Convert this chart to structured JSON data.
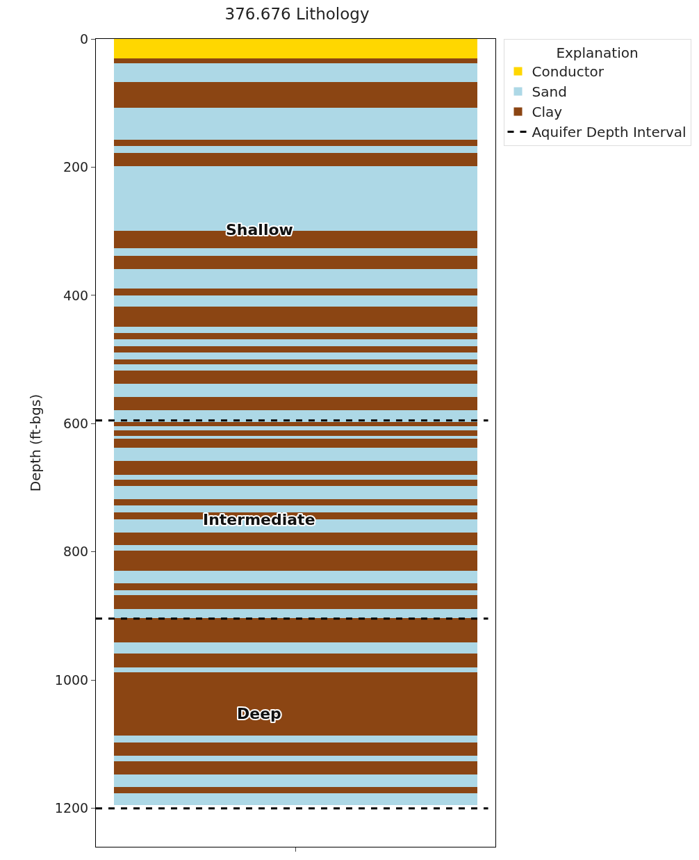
{
  "chart_data": {
    "type": "bar",
    "title": "376.676 Lithology",
    "ylabel": "Depth (ft-bgs)",
    "legend_title": "Explanation",
    "legend": "top right",
    "grid": false,
    "tick_labels": "y",
    "stacked": true,
    "categories": [
      null
    ],
    "ylim": [
      1260,
      0
    ],
    "yticks": [
      0,
      200,
      400,
      600,
      800,
      1000,
      1200
    ],
    "series": [
      {
        "name": "Conductor",
        "color": "#ffd700",
        "values": [
          30
        ]
      },
      {
        "color": "#8b4513",
        "values": [
          8
        ]
      },
      {
        "name": "Sand",
        "color": "#add8e6",
        "values": [
          29
        ]
      },
      {
        "name": "Clay",
        "color": "#8b4513",
        "values": [
          40
        ]
      },
      {
        "color": "#add8e6",
        "values": [
          50
        ]
      },
      {
        "color": "#8b4513",
        "values": [
          10
        ]
      },
      {
        "color": "#add8e6",
        "values": [
          11
        ]
      },
      {
        "color": "#8b4513",
        "values": [
          20
        ]
      },
      {
        "color": "#add8e6",
        "values": [
          101
        ]
      },
      {
        "color": "#8b4513",
        "values": [
          27
        ]
      },
      {
        "color": "#add8e6",
        "values": [
          12
        ]
      },
      {
        "color": "#8b4513",
        "values": [
          21
        ]
      },
      {
        "color": "#add8e6",
        "values": [
          30
        ]
      },
      {
        "color": "#8b4513",
        "values": [
          11
        ]
      },
      {
        "color": "#add8e6",
        "values": [
          17
        ]
      },
      {
        "color": "#8b4513",
        "values": [
          32
        ]
      },
      {
        "color": "#add8e6",
        "values": [
          10
        ]
      },
      {
        "color": "#8b4513",
        "values": [
          9
        ]
      },
      {
        "color": "#add8e6",
        "values": [
          11
        ]
      },
      {
        "color": "#8b4513",
        "values": [
          10
        ]
      },
      {
        "color": "#add8e6",
        "values": [
          11
        ]
      },
      {
        "color": "#8b4513",
        "values": [
          8
        ]
      },
      {
        "color": "#add8e6",
        "values": [
          9
        ]
      },
      {
        "color": "#8b4513",
        "values": [
          21
        ]
      },
      {
        "color": "#add8e6",
        "values": [
          20
        ]
      },
      {
        "color": "#8b4513",
        "values": [
          21
        ]
      },
      {
        "color": "#add8e6",
        "values": [
          18
        ]
      },
      {
        "color": "#8b4513",
        "values": [
          7
        ]
      },
      {
        "color": "#add8e6",
        "values": [
          7
        ]
      },
      {
        "color": "#8b4513",
        "values": [
          8
        ]
      },
      {
        "color": "#add8e6",
        "values": [
          5
        ]
      },
      {
        "color": "#8b4513",
        "values": [
          14
        ]
      },
      {
        "color": "#add8e6",
        "values": [
          20
        ]
      },
      {
        "color": "#8b4513",
        "values": [
          22
        ]
      },
      {
        "color": "#add8e6",
        "values": [
          7
        ]
      },
      {
        "color": "#8b4513",
        "values": [
          10
        ]
      },
      {
        "color": "#add8e6",
        "values": [
          21
        ]
      },
      {
        "color": "#8b4513",
        "values": [
          10
        ]
      },
      {
        "color": "#add8e6",
        "values": [
          10
        ]
      },
      {
        "color": "#8b4513",
        "values": [
          11
        ]
      },
      {
        "color": "#add8e6",
        "values": [
          21
        ]
      },
      {
        "color": "#8b4513",
        "values": [
          19
        ]
      },
      {
        "color": "#add8e6",
        "values": [
          9
        ]
      },
      {
        "color": "#8b4513",
        "values": [
          31
        ]
      },
      {
        "color": "#add8e6",
        "values": [
          20
        ]
      },
      {
        "color": "#8b4513",
        "values": [
          11
        ]
      },
      {
        "color": "#add8e6",
        "values": [
          8
        ]
      },
      {
        "color": "#8b4513",
        "values": [
          21
        ]
      },
      {
        "color": "#add8e6",
        "values": [
          14
        ]
      },
      {
        "color": "#8b4513",
        "values": [
          38
        ]
      },
      {
        "color": "#add8e6",
        "values": [
          18
        ]
      },
      {
        "color": "#8b4513",
        "values": [
          21
        ]
      },
      {
        "color": "#add8e6",
        "values": [
          8
        ]
      },
      {
        "color": "#8b4513",
        "values": [
          99
        ]
      },
      {
        "color": "#add8e6",
        "values": [
          10
        ]
      },
      {
        "color": "#8b4513",
        "values": [
          21
        ]
      },
      {
        "color": "#add8e6",
        "values": [
          9
        ]
      },
      {
        "color": "#8b4513",
        "values": [
          20
        ]
      },
      {
        "color": "#add8e6",
        "values": [
          20
        ]
      },
      {
        "color": "#8b4513",
        "values": [
          10
        ]
      },
      {
        "color": "#add8e6",
        "values": [
          18
        ]
      }
    ],
    "ref_lines": [
      {
        "axis": "y",
        "value": 595,
        "label": "Aquifer Depth Interval",
        "color": "#000000",
        "line_style": "dashed"
      },
      {
        "axis": "y",
        "value": 904,
        "color": "#000000",
        "line_style": "dashed"
      },
      {
        "axis": "y",
        "value": 1200,
        "color": "#000000",
        "line_style": "dashed"
      }
    ],
    "annotations": [
      "Shallow",
      "Intermediate",
      "Deep"
    ]
  }
}
